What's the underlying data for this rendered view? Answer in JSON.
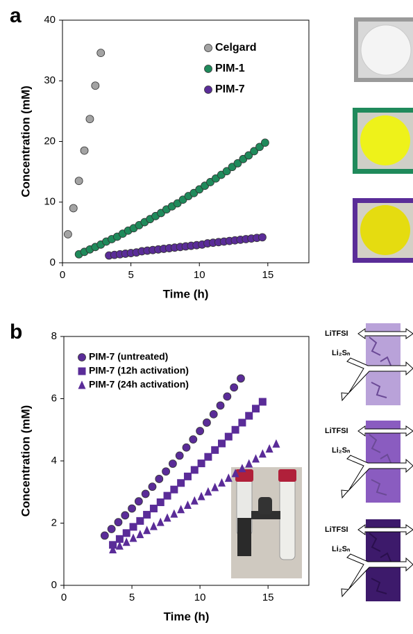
{
  "chart_data": [
    {
      "type": "scatter",
      "panel": "a",
      "xlabel": "Time (h)",
      "ylabel": "Concentration (mM)",
      "xlim": [
        0,
        18
      ],
      "ylim": [
        0,
        40
      ],
      "xticks": [
        0,
        5,
        10,
        15
      ],
      "yticks": [
        0,
        10,
        20,
        30,
        40
      ],
      "legend": "upper right",
      "series": [
        {
          "name": "Celgard",
          "color": "#a3a3a3",
          "marker": "circle",
          "x": [
            0.4,
            0.8,
            1.2,
            1.6,
            2.0,
            2.4,
            2.8
          ],
          "values": [
            4.7,
            9.0,
            13.5,
            18.5,
            23.7,
            29.2,
            34.6
          ]
        },
        {
          "name": "PIM-1",
          "color": "#1f8a5b",
          "marker": "circle",
          "x": [
            1.2,
            1.6,
            2.0,
            2.4,
            2.8,
            3.2,
            3.6,
            4.0,
            4.4,
            4.8,
            5.2,
            5.6,
            6.0,
            6.4,
            6.8,
            7.2,
            7.6,
            8.0,
            8.4,
            8.8,
            9.2,
            9.6,
            10.0,
            10.4,
            10.8,
            11.2,
            11.6,
            12.0,
            12.4,
            12.8,
            13.2,
            13.6,
            14.0,
            14.4,
            14.8
          ],
          "values": [
            1.4,
            1.8,
            2.2,
            2.6,
            3.0,
            3.5,
            3.9,
            4.3,
            4.8,
            5.3,
            5.7,
            6.2,
            6.7,
            7.2,
            7.7,
            8.2,
            8.8,
            9.3,
            9.8,
            10.4,
            11.0,
            11.5,
            12.1,
            12.7,
            13.3,
            13.9,
            14.5,
            15.1,
            15.8,
            16.4,
            17.1,
            17.7,
            18.4,
            19.1,
            19.8
          ]
        },
        {
          "name": "PIM-7",
          "color": "#5a2c98",
          "marker": "circle",
          "x": [
            3.4,
            3.8,
            4.2,
            4.6,
            5.0,
            5.4,
            5.8,
            6.2,
            6.6,
            7.0,
            7.4,
            7.8,
            8.2,
            8.6,
            9.0,
            9.4,
            9.8,
            10.2,
            10.6,
            11.0,
            11.4,
            11.8,
            12.2,
            12.6,
            13.0,
            13.4,
            13.8,
            14.2,
            14.6
          ],
          "values": [
            1.2,
            1.3,
            1.4,
            1.5,
            1.6,
            1.7,
            1.9,
            2.0,
            2.1,
            2.2,
            2.3,
            2.4,
            2.5,
            2.6,
            2.7,
            2.8,
            2.9,
            3.0,
            3.2,
            3.3,
            3.4,
            3.5,
            3.6,
            3.7,
            3.8,
            3.9,
            4.0,
            4.1,
            4.2
          ]
        }
      ]
    },
    {
      "type": "scatter",
      "panel": "b",
      "xlabel": "Time (h)",
      "ylabel": "Concentration (mM)",
      "xlim": [
        0,
        18
      ],
      "ylim": [
        0,
        8
      ],
      "xticks": [
        0,
        5,
        10,
        15
      ],
      "yticks": [
        0,
        2,
        4,
        6,
        8
      ],
      "legend": "upper left",
      "series": [
        {
          "name": "PIM-7 (untreated)",
          "color": "#5a2c98",
          "marker": "circle",
          "x": [
            3.0,
            3.5,
            4.0,
            4.5,
            5.0,
            5.5,
            6.0,
            6.5,
            7.0,
            7.5,
            8.0,
            8.5,
            9.0,
            9.5,
            10.0,
            10.5,
            11.0,
            11.5,
            12.0,
            12.5,
            13.0
          ],
          "values": [
            1.6,
            1.81,
            2.03,
            2.25,
            2.47,
            2.7,
            2.94,
            3.17,
            3.42,
            3.66,
            3.91,
            4.17,
            4.43,
            4.69,
            4.96,
            5.23,
            5.5,
            5.78,
            6.07,
            6.36,
            6.65
          ]
        },
        {
          "name": "PIM-7 (12h activation)",
          "color": "#5a2c98",
          "marker": "square",
          "x": [
            3.6,
            4.1,
            4.6,
            5.1,
            5.6,
            6.1,
            6.6,
            7.1,
            7.6,
            8.1,
            8.6,
            9.1,
            9.6,
            10.1,
            10.6,
            11.1,
            11.6,
            12.1,
            12.6,
            13.1,
            13.6,
            14.1,
            14.6
          ],
          "values": [
            1.3,
            1.49,
            1.68,
            1.88,
            2.07,
            2.27,
            2.47,
            2.67,
            2.88,
            3.08,
            3.29,
            3.5,
            3.71,
            3.92,
            4.13,
            4.35,
            4.56,
            4.78,
            5.0,
            5.23,
            5.45,
            5.68,
            5.9
          ]
        },
        {
          "name": "PIM-7 (24h activation)",
          "color": "#5a2c98",
          "marker": "triangle",
          "x": [
            3.6,
            4.1,
            4.6,
            5.1,
            5.6,
            6.1,
            6.6,
            7.1,
            7.6,
            8.1,
            8.6,
            9.1,
            9.6,
            10.1,
            10.6,
            11.1,
            11.6,
            12.1,
            12.6,
            13.1,
            13.6,
            14.1,
            14.6,
            15.1,
            15.6
          ],
          "values": [
            1.15,
            1.27,
            1.39,
            1.52,
            1.64,
            1.77,
            1.9,
            2.03,
            2.17,
            2.3,
            2.44,
            2.58,
            2.72,
            2.86,
            3.01,
            3.15,
            3.3,
            3.45,
            3.6,
            3.76,
            3.91,
            4.07,
            4.23,
            4.39,
            4.55
          ]
        }
      ]
    }
  ],
  "schematic": {
    "salt": "LiTFSI",
    "polysulfide": "Li₂Sₙ"
  }
}
